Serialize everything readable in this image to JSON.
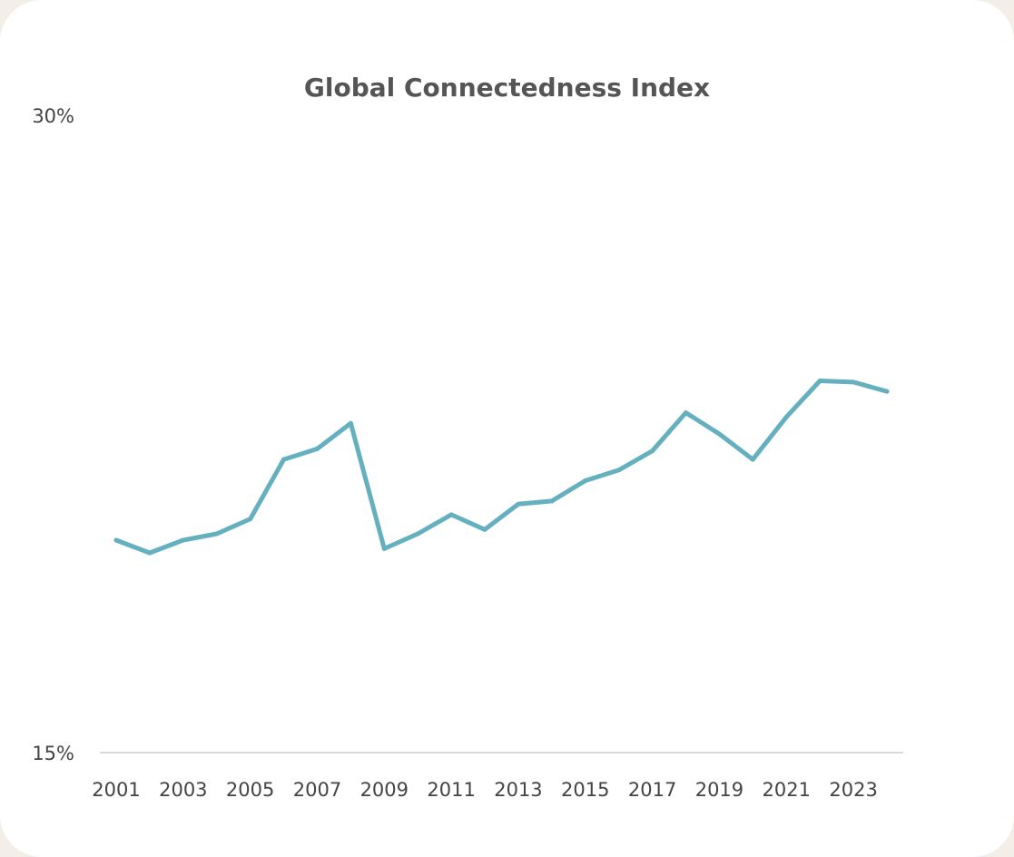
{
  "chart_data": {
    "type": "line",
    "title": "Global Connectedness Index",
    "xlabel": "",
    "ylabel": "",
    "x": [
      2001,
      2002,
      2003,
      2004,
      2005,
      2006,
      2007,
      2008,
      2009,
      2010,
      2011,
      2012,
      2013,
      2014,
      2015,
      2016,
      2017,
      2018,
      2019,
      2020,
      2021,
      2022,
      2023,
      2024
    ],
    "x_tick_labels": [
      "2001",
      "2003",
      "2005",
      "2007",
      "2009",
      "2011",
      "2013",
      "2015",
      "2017",
      "2019",
      "2021",
      "2023"
    ],
    "series": [
      {
        "values": [
          20.0,
          19.7,
          20.0,
          20.15,
          20.5,
          21.9,
          22.15,
          22.75,
          19.8,
          20.15,
          20.6,
          20.25,
          20.85,
          20.92,
          21.4,
          21.65,
          22.1,
          23.0,
          22.5,
          21.9,
          22.9,
          23.75,
          23.72,
          23.5
        ],
        "color": "#64b0bf"
      }
    ],
    "ylim": [
      15,
      30
    ],
    "y_tick_labels": [
      "15%",
      "30%"
    ],
    "grid": false,
    "legend": "none",
    "colors": {
      "line": "#64b0bf",
      "axis": "#d9d9d9",
      "text": "#444444",
      "title": "#555555"
    }
  }
}
